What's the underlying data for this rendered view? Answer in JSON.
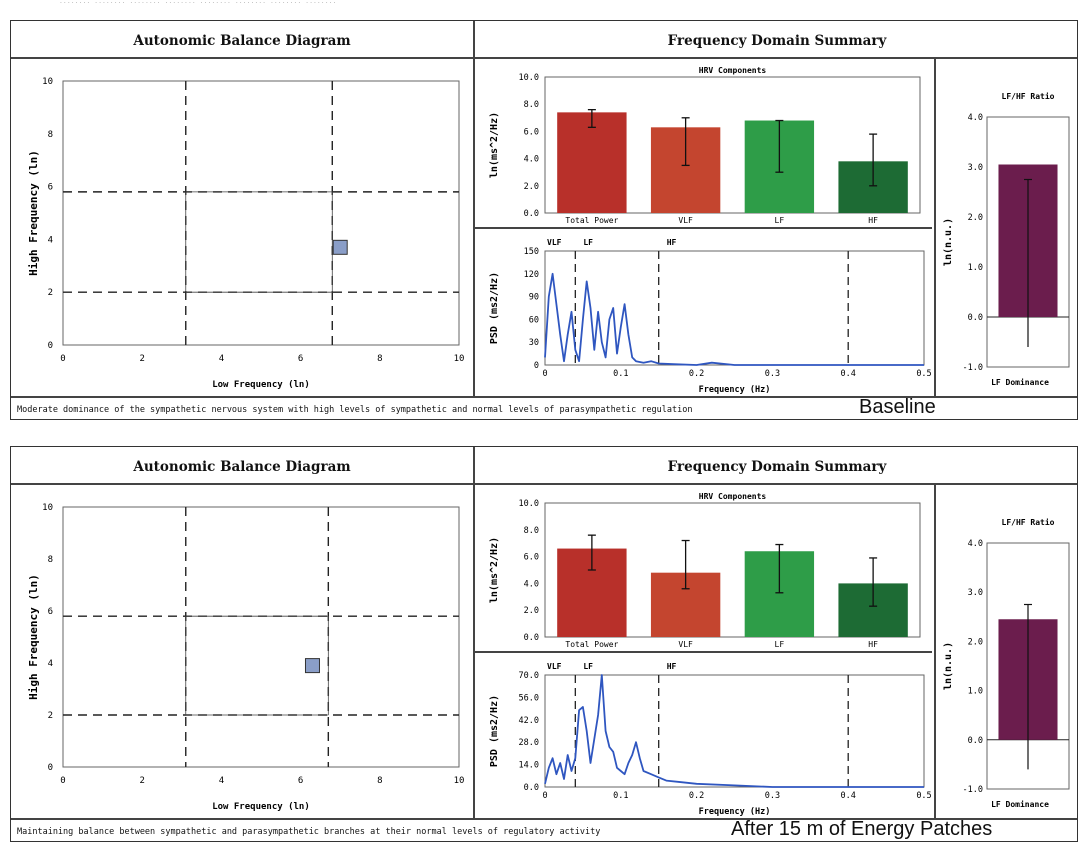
{
  "panels": [
    {
      "state_label": "Baseline",
      "caption": "Moderate dominance of the sympathetic nervous system with high levels of sympathetic and normal levels of parasympathetic regulation",
      "balance_title": "Autonomic Balance Diagram",
      "summary_title": "Frequency Domain Summary"
    },
    {
      "state_label": "After 15 m of Energy Patches",
      "caption": "Maintaining balance between sympathetic and parasympathetic branches at their normal levels of regulatory activity",
      "balance_title": "Autonomic Balance Diagram",
      "summary_title": "Frequency Domain Summary"
    }
  ],
  "chart_data": [
    {
      "type": "scatter",
      "title": "Autonomic Balance Diagram",
      "xlabel": "Low Frequency (ln)",
      "ylabel": "High Frequency (ln)",
      "xlim": [
        0,
        10
      ],
      "ylim": [
        0,
        10
      ],
      "xticks": [
        0,
        2,
        4,
        6,
        8,
        10
      ],
      "yticks": [
        0,
        2,
        4,
        6,
        8,
        10
      ],
      "points": [
        {
          "x": 7.0,
          "y": 3.7
        }
      ],
      "reference_lines": {
        "x": [
          3.1,
          6.8
        ],
        "y": [
          2.0,
          5.8
        ]
      },
      "colors": {
        "point": "#8a9ec8"
      }
    },
    {
      "type": "bar",
      "title": "HRV Components",
      "ylabel": "ln(ms^2/Hz)",
      "categories": [
        "Total Power",
        "VLF",
        "LF",
        "HF"
      ],
      "values": [
        7.4,
        6.3,
        6.8,
        3.8
      ],
      "err_low": [
        6.3,
        3.5,
        3.0,
        2.0
      ],
      "err_high": [
        7.6,
        7.0,
        6.8,
        5.8
      ],
      "ylim": [
        0,
        10
      ],
      "yticks": [
        "0.0",
        "2.0",
        "4.0",
        "6.0",
        "8.0",
        "10.0"
      ],
      "colors": [
        "#b8302a",
        "#c4452f",
        "#2e9d48",
        "#1d6b34"
      ]
    },
    {
      "type": "line",
      "xlabel": "Frequency (Hz)",
      "ylabel": "PSD (ms2/Hz)",
      "xlim": [
        0,
        0.5
      ],
      "ylim": [
        0,
        150
      ],
      "xticks": [
        "0",
        "0.1",
        "0.2",
        "0.3",
        "0.4",
        "0.5"
      ],
      "yticks": [
        "0",
        "30",
        "60",
        "90",
        "120",
        "150"
      ],
      "yticks_at": [
        0,
        30,
        60,
        90,
        120,
        150
      ],
      "band_labels": [
        {
          "label": "VLF",
          "at": 0.0
        },
        {
          "label": "LF",
          "at": 0.04
        },
        {
          "label": "HF",
          "at": 0.15
        }
      ],
      "band_lines": [
        0.04,
        0.15,
        0.4
      ],
      "x": [
        0.0,
        0.005,
        0.01,
        0.015,
        0.02,
        0.025,
        0.03,
        0.035,
        0.04,
        0.045,
        0.05,
        0.055,
        0.06,
        0.065,
        0.07,
        0.075,
        0.08,
        0.085,
        0.09,
        0.095,
        0.1,
        0.105,
        0.11,
        0.115,
        0.12,
        0.13,
        0.14,
        0.15,
        0.17,
        0.2,
        0.22,
        0.25,
        0.3,
        0.35,
        0.4,
        0.45,
        0.5
      ],
      "y": [
        10,
        90,
        120,
        80,
        40,
        5,
        40,
        70,
        20,
        5,
        60,
        110,
        75,
        20,
        70,
        30,
        10,
        60,
        75,
        15,
        50,
        80,
        40,
        10,
        5,
        3,
        5,
        2,
        1,
        0,
        3,
        0,
        0,
        0,
        0,
        0,
        0
      ],
      "colors": {
        "line": "#2f56c0"
      }
    },
    {
      "type": "bar",
      "title": "LF/HF Ratio",
      "ylabel": "ln(n.u.)",
      "xlabel": "LF Dominance",
      "categories": [
        ""
      ],
      "values": [
        3.05
      ],
      "err_low": [
        -0.6
      ],
      "err_high": [
        2.75
      ],
      "ylim": [
        -1,
        4
      ],
      "yticks": [
        "-1.0",
        "0.0",
        "1.0",
        "2.0",
        "3.0",
        "4.0"
      ],
      "colors": [
        "#6b1d4d"
      ]
    },
    {
      "type": "scatter",
      "title": "Autonomic Balance Diagram",
      "xlabel": "Low Frequency (ln)",
      "ylabel": "High Frequency (ln)",
      "xlim": [
        0,
        10
      ],
      "ylim": [
        0,
        10
      ],
      "xticks": [
        0,
        2,
        4,
        6,
        8,
        10
      ],
      "yticks": [
        0,
        2,
        4,
        6,
        8,
        10
      ],
      "points": [
        {
          "x": 6.3,
          "y": 3.9
        }
      ],
      "reference_lines": {
        "x": [
          3.1,
          6.7
        ],
        "y": [
          2.0,
          5.8
        ]
      },
      "colors": {
        "point": "#8a9ec8"
      }
    },
    {
      "type": "bar",
      "title": "HRV Components",
      "ylabel": "ln(ms^2/Hz)",
      "categories": [
        "Total Power",
        "VLF",
        "LF",
        "HF"
      ],
      "values": [
        6.6,
        4.8,
        6.4,
        4.0
      ],
      "err_low": [
        5.0,
        3.6,
        3.3,
        2.3
      ],
      "err_high": [
        7.6,
        7.2,
        6.9,
        5.9
      ],
      "ylim": [
        0,
        10
      ],
      "yticks": [
        "0.0",
        "2.0",
        "4.0",
        "6.0",
        "8.0",
        "10.0"
      ],
      "colors": [
        "#b8302a",
        "#c4452f",
        "#2e9d48",
        "#1d6b34"
      ]
    },
    {
      "type": "line",
      "xlabel": "Frequency (Hz)",
      "ylabel": "PSD (ms2/Hz)",
      "xlim": [
        0,
        0.5
      ],
      "ylim": [
        0,
        70
      ],
      "xticks": [
        "0",
        "0.1",
        "0.2",
        "0.3",
        "0.4",
        "0.5"
      ],
      "yticks": [
        "0.0",
        "14.0",
        "28.0",
        "42.0",
        "56.0",
        "70.0"
      ],
      "yticks_at": [
        0,
        14,
        28,
        42,
        56,
        70
      ],
      "band_labels": [
        {
          "label": "VLF",
          "at": 0.0
        },
        {
          "label": "LF",
          "at": 0.04
        },
        {
          "label": "HF",
          "at": 0.15
        }
      ],
      "band_lines": [
        0.04,
        0.15,
        0.4
      ],
      "x": [
        0.0,
        0.005,
        0.01,
        0.015,
        0.02,
        0.025,
        0.03,
        0.035,
        0.04,
        0.045,
        0.05,
        0.055,
        0.06,
        0.065,
        0.07,
        0.075,
        0.08,
        0.085,
        0.09,
        0.095,
        0.1,
        0.105,
        0.11,
        0.115,
        0.12,
        0.125,
        0.13,
        0.14,
        0.15,
        0.16,
        0.18,
        0.2,
        0.25,
        0.3,
        0.4,
        0.5
      ],
      "y": [
        2,
        12,
        18,
        8,
        15,
        5,
        20,
        10,
        18,
        48,
        50,
        35,
        15,
        30,
        45,
        70,
        35,
        25,
        22,
        12,
        10,
        8,
        15,
        20,
        28,
        18,
        10,
        8,
        6,
        4,
        3,
        2,
        1,
        0,
        0,
        0
      ],
      "colors": {
        "line": "#2f56c0"
      }
    },
    {
      "type": "bar",
      "title": "LF/HF Ratio",
      "ylabel": "ln(n.u.)",
      "xlabel": "LF Dominance",
      "categories": [
        ""
      ],
      "values": [
        2.45
      ],
      "err_low": [
        -0.6
      ],
      "err_high": [
        2.75
      ],
      "ylim": [
        -1,
        4
      ],
      "yticks": [
        "-1.0",
        "0.0",
        "1.0",
        "2.0",
        "3.0",
        "4.0"
      ],
      "colors": [
        "#6b1d4d"
      ]
    }
  ]
}
